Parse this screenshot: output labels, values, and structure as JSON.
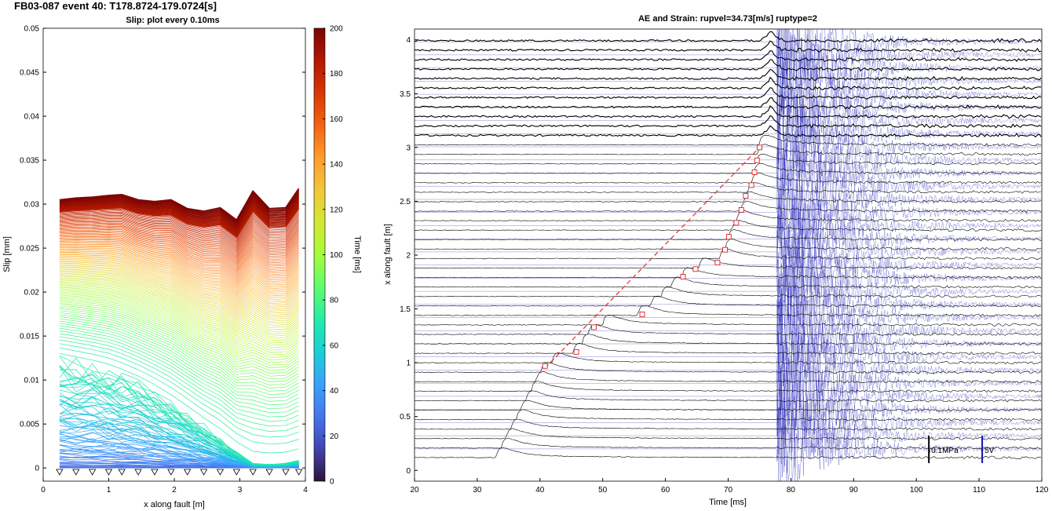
{
  "figure_title": "FB03-087 event 40: T178.8724-179.0724[s]",
  "chart_data": [
    {
      "type": "line",
      "title": "Slip: plot every 0.10ms",
      "xlabel": "x along fault [m]",
      "ylabel": "Slip [mm]",
      "xlim": [
        0,
        4
      ],
      "ylim": [
        -0.0015,
        0.05
      ],
      "xticks": [
        0,
        1,
        2,
        3,
        4
      ],
      "yticks": [
        0,
        0.005,
        0.01,
        0.015,
        0.02,
        0.025,
        0.03,
        0.035,
        0.04,
        0.045,
        0.05
      ],
      "ytick_labels": [
        "0",
        "0.005",
        "0.01",
        "0.015",
        "0.02",
        "0.025",
        "0.03",
        "0.035",
        "0.04",
        "0.045",
        "0.05"
      ],
      "sensor_x": [
        0.25,
        0.5,
        0.75,
        1.0,
        1.2,
        1.45,
        1.7,
        1.95,
        2.2,
        2.45,
        2.7,
        2.95,
        3.2,
        3.45,
        3.7,
        3.9
      ],
      "final_slip": [
        0.0305,
        0.0307,
        0.0308,
        0.031,
        0.0311,
        0.0305,
        0.0303,
        0.0305,
        0.0295,
        0.0292,
        0.0296,
        0.0282,
        0.0315,
        0.0295,
        0.0296,
        0.0318
      ],
      "mid_slip": [
        0.0122,
        0.0118,
        0.0114,
        0.0109,
        0.0103,
        0.0095,
        0.0085,
        0.0073,
        0.006,
        0.0046,
        0.0033,
        0.0018,
        0.0005,
        0.0004,
        0.0005,
        0.0008
      ],
      "colorbar": {
        "label": "Time [ms]",
        "range": [
          0,
          200
        ],
        "ticks": [
          0,
          20,
          40,
          60,
          80,
          100,
          120,
          140,
          160,
          180,
          200
        ],
        "colors": [
          "#30123b",
          "#4145ab",
          "#4675ed",
          "#39a2fc",
          "#1bcfd4",
          "#24eca6",
          "#61fc6c",
          "#a4fc3b",
          "#d1e834",
          "#f3c63a",
          "#fe9b2d",
          "#f36315",
          "#d93806",
          "#b11901",
          "#7a0403"
        ]
      },
      "grid": false
    },
    {
      "type": "line",
      "title": "AE and Strain: rupvel=34.73[m/s] ruptype=2",
      "xlabel": "Time [ms]",
      "ylabel": "x along fault [m]",
      "xlim": [
        20,
        120
      ],
      "ylim": [
        -0.1,
        4.1
      ],
      "xticks": [
        20,
        30,
        40,
        50,
        60,
        70,
        80,
        90,
        100,
        110,
        120
      ],
      "yticks": [
        0,
        0.5,
        1,
        1.5,
        2,
        2.5,
        3,
        3.5,
        4
      ],
      "ytick_labels": [
        "0",
        "0.5",
        "1",
        "1.5",
        "2",
        "2.5",
        "3",
        "3.5",
        "4"
      ],
      "rupture_front": {
        "time_ms": [
          40.8,
          45.8,
          48.6,
          56.3,
          62.8,
          64.8,
          68.3,
          69.5,
          70.1,
          71.3,
          72.1,
          72.8,
          73.7,
          74.2,
          74.6,
          75.0
        ],
        "x_m": [
          0.97,
          1.1,
          1.33,
          1.45,
          1.8,
          1.87,
          1.93,
          2.05,
          2.17,
          2.3,
          2.42,
          2.55,
          2.65,
          2.77,
          2.88,
          3.0
        ],
        "fit_time_ms": [
          40.8,
          75.0
        ],
        "fit_x_m": [
          0.95,
          3.0
        ]
      },
      "ae_onset_ms": 77.8,
      "scale_labels": {
        "strain": "0.1MPa",
        "ae": "5V"
      },
      "scale_bar_time_ms": {
        "strain": 102.0,
        "ae": 110.5
      },
      "grid": false
    }
  ]
}
